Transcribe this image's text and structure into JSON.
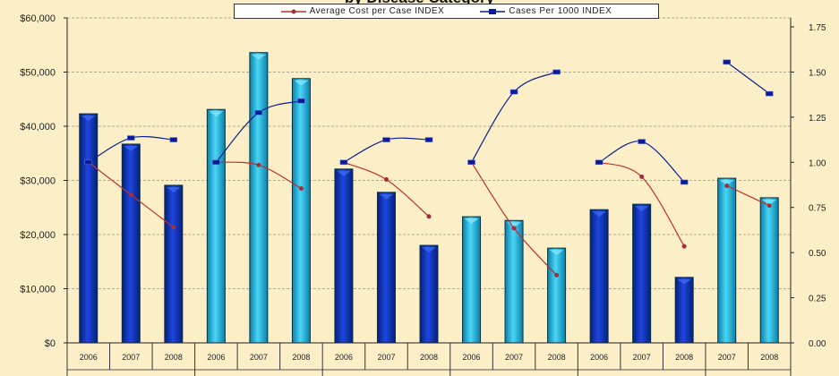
{
  "chart_data": {
    "type": "bar",
    "title": "by Disease Category",
    "categories": [
      "2006",
      "2007",
      "2008",
      "2006",
      "2007",
      "2008",
      "2006",
      "2007",
      "2008",
      "2006",
      "2007",
      "2008",
      "2006",
      "2007",
      "2008",
      "2007",
      "2008"
    ],
    "groups": [
      0,
      0,
      0,
      1,
      1,
      1,
      2,
      2,
      2,
      3,
      3,
      3,
      4,
      4,
      4,
      5,
      5
    ],
    "group_colors": [
      "#0b2fb5",
      "#1cb6e4",
      "#0b2fb5",
      "#1cb6e4",
      "#0b2fb5",
      "#1cb6e4"
    ],
    "bar_values": [
      42300,
      36700,
      29100,
      43100,
      53600,
      48800,
      32100,
      27800,
      18000,
      23300,
      22600,
      17500,
      24600,
      25600,
      12100,
      30400,
      26800
    ],
    "series": [
      {
        "name": "Average Cost per Case INDEX",
        "axis": "right",
        "type": "line",
        "color": "#c0302a",
        "values": [
          1.0,
          0.82,
          0.64,
          1.0,
          0.985,
          0.855,
          1.0,
          0.905,
          0.7,
          1.0,
          0.635,
          0.375,
          1.0,
          0.92,
          0.535,
          0.87,
          0.76
        ]
      },
      {
        "name": "Cases Per 1000 INDEX",
        "axis": "right",
        "type": "line",
        "color": "#0a1f8f",
        "values": [
          1.0,
          1.135,
          1.125,
          1.0,
          1.275,
          1.34,
          1.0,
          1.125,
          1.125,
          1.0,
          1.39,
          1.5,
          1.0,
          1.115,
          0.89,
          1.555,
          1.38
        ]
      }
    ],
    "y_left": {
      "min": 0,
      "max": 60000,
      "ticks": [
        "$0",
        "$10,000",
        "$20,000",
        "$30,000",
        "$40,000",
        "$50,000",
        "$60,000"
      ]
    },
    "y_right": {
      "min": 0,
      "max": 1.75,
      "ticks": [
        "0.00",
        "0.25",
        "0.50",
        "0.75",
        "1.00",
        "1.25",
        "1.50",
        "1.75"
      ]
    },
    "grid": true,
    "legend_position": "top"
  }
}
